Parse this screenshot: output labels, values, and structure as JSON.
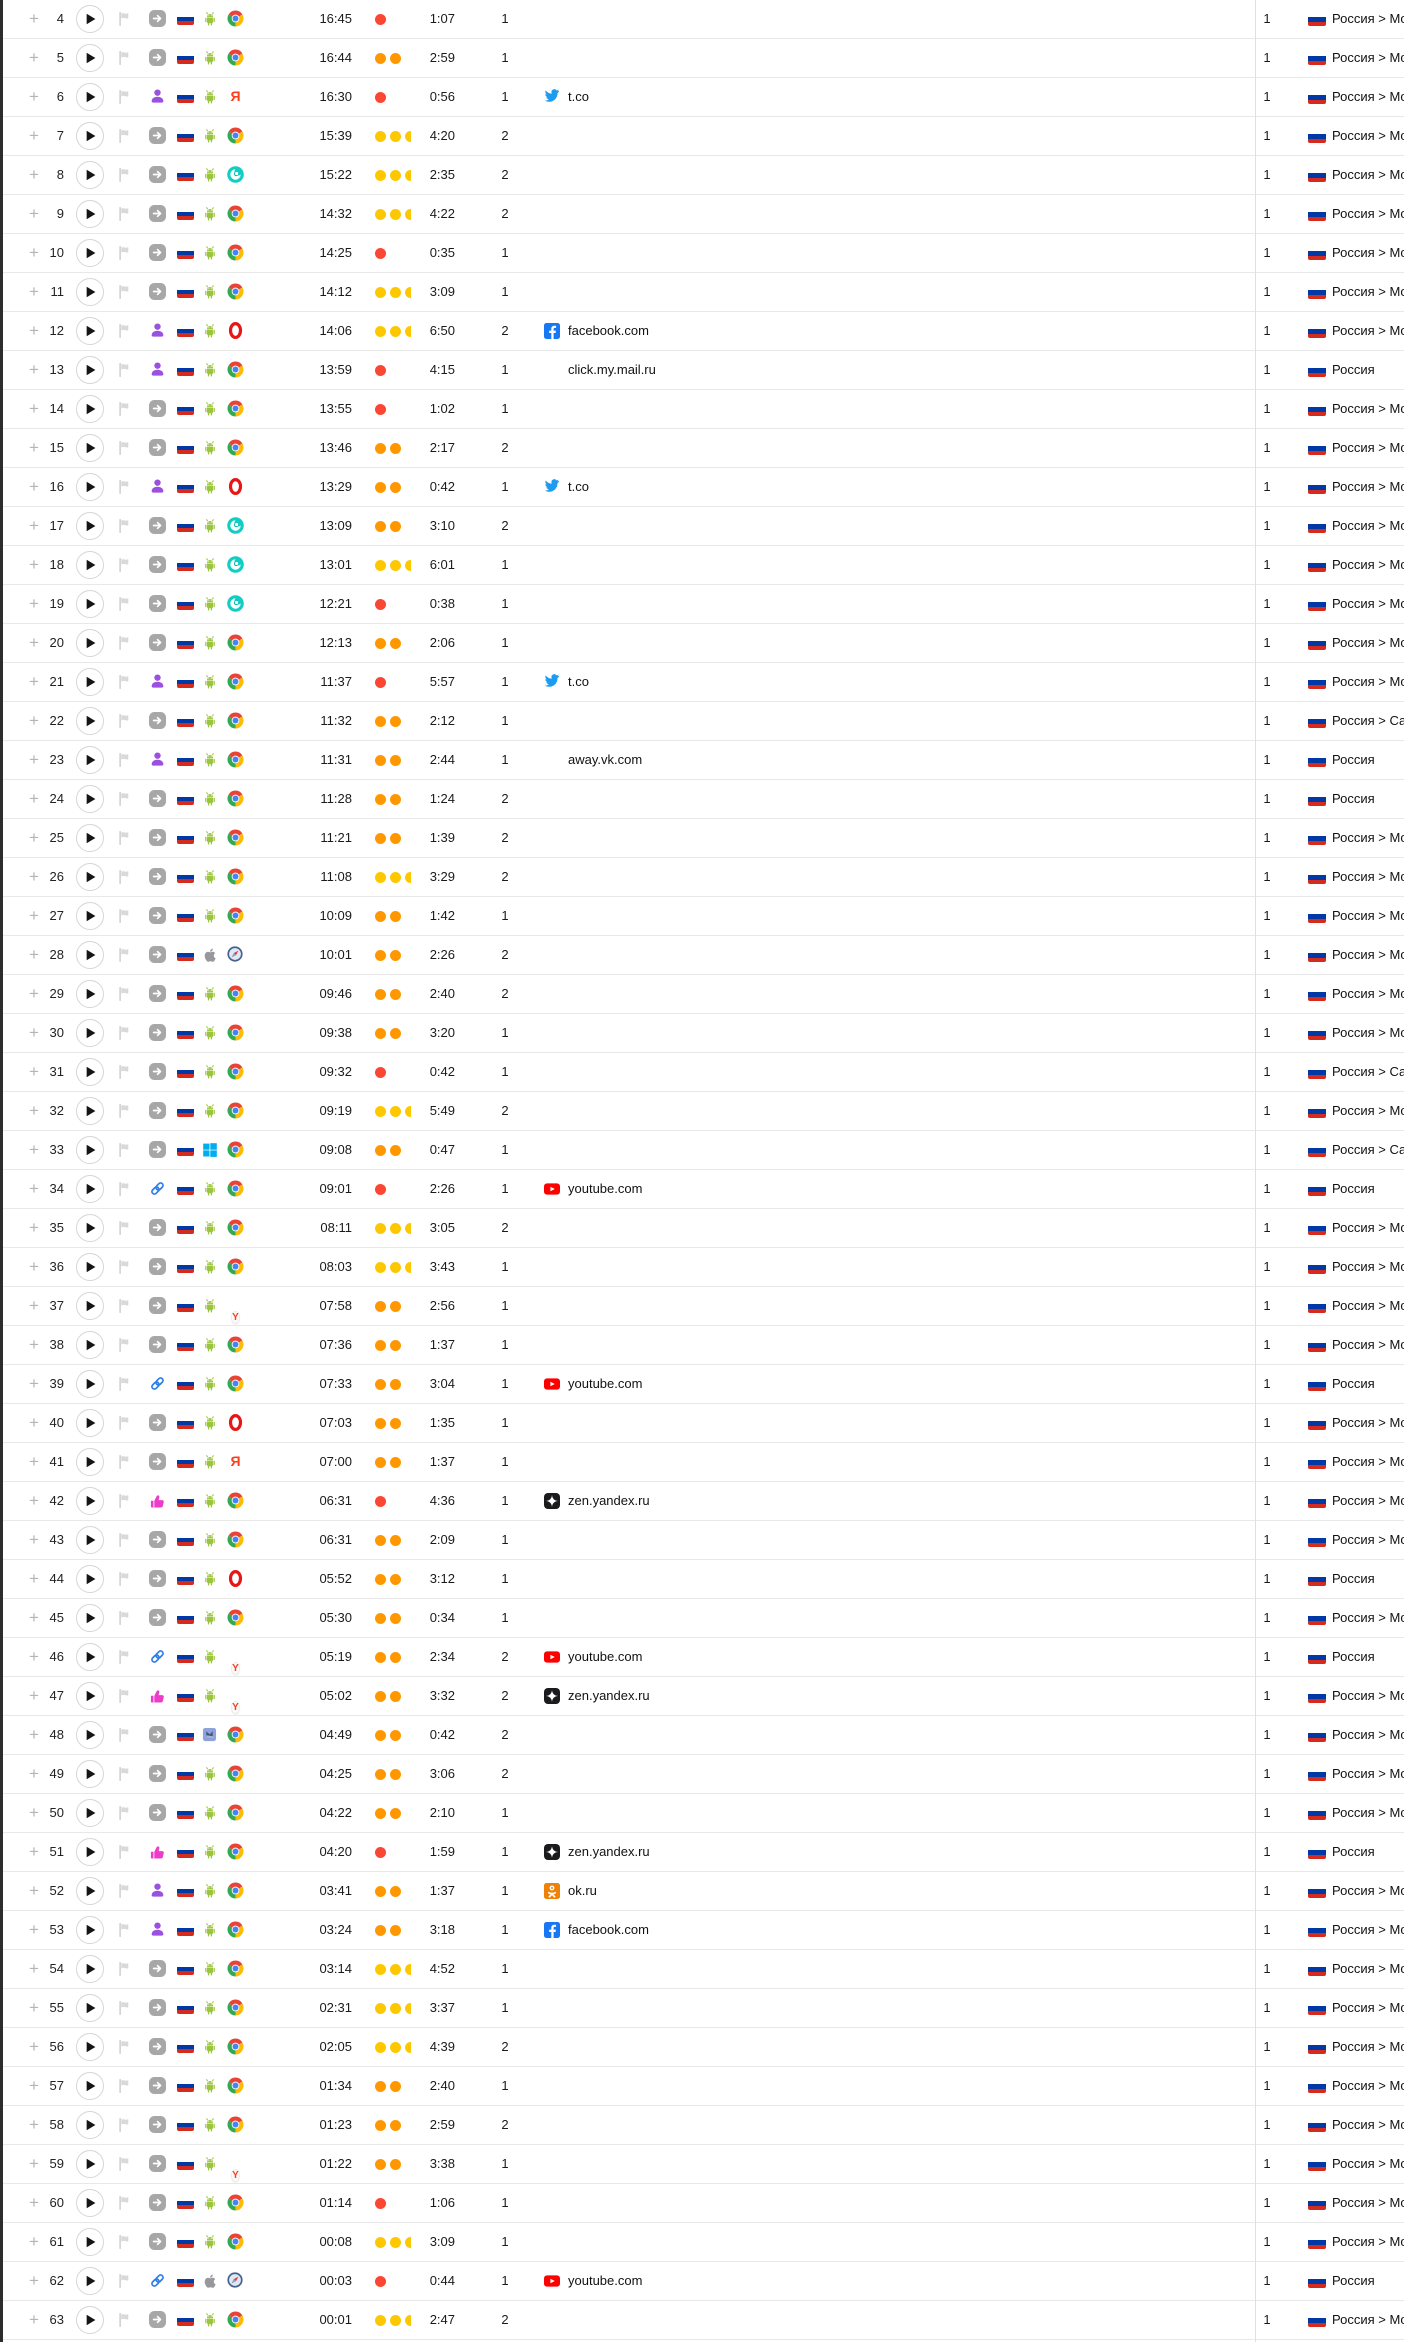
{
  "app": {
    "name": "webvisor-session-table"
  },
  "colors": {
    "activity_red": "#fa4632",
    "activity_orange": "#ff9800",
    "activity_yellow": "#fdc800",
    "row_border": "#e8e8e8",
    "column_divider": "#e0e0e0",
    "left_edge_bar": "#2c2c2c",
    "previous_row_bg": "#f2f1ef",
    "link_blue": "#2e7de9",
    "person_purple": "#9b51e0",
    "thumb_pink": "#ed3cc7",
    "source_gray": "#a7a7a7"
  },
  "glyphs": {
    "plus": "+",
    "yandex_letter": "Я",
    "ybrowser_letter": "Y"
  },
  "table": {
    "rows": [
      {
        "n": "4",
        "time": "16:45",
        "activity": 1,
        "duration": "1:07",
        "views": "1",
        "source": "redirect",
        "os": "android",
        "browser": "chrome",
        "site": "",
        "site_icon": "",
        "count": "1",
        "region": "Россия > Москва"
      },
      {
        "n": "5",
        "time": "16:44",
        "activity": 2,
        "duration": "2:59",
        "views": "1",
        "source": "redirect",
        "os": "android",
        "browser": "chrome",
        "site": "",
        "site_icon": "",
        "count": "1",
        "region": "Россия > Москва"
      },
      {
        "n": "6",
        "time": "16:30",
        "activity": 1,
        "duration": "0:56",
        "views": "1",
        "source": "social",
        "os": "android",
        "browser": "yandex",
        "site": "t.co",
        "site_icon": "twitter",
        "count": "1",
        "region": "Россия > Москва"
      },
      {
        "n": "7",
        "time": "15:39",
        "activity": 3,
        "duration": "4:20",
        "views": "2",
        "source": "redirect",
        "os": "android",
        "browser": "chrome",
        "site": "",
        "site_icon": "",
        "count": "1",
        "region": "Россия > Москва"
      },
      {
        "n": "8",
        "time": "15:22",
        "activity": 3,
        "duration": "2:35",
        "views": "2",
        "source": "redirect",
        "os": "android",
        "browser": "teal-swirl",
        "site": "",
        "site_icon": "",
        "count": "1",
        "region": "Россия > Москва"
      },
      {
        "n": "9",
        "time": "14:32",
        "activity": 3,
        "duration": "4:22",
        "views": "2",
        "source": "redirect",
        "os": "android",
        "browser": "chrome",
        "site": "",
        "site_icon": "",
        "count": "1",
        "region": "Россия > Москва"
      },
      {
        "n": "10",
        "time": "14:25",
        "activity": 1,
        "duration": "0:35",
        "views": "1",
        "source": "redirect",
        "os": "android",
        "browser": "chrome",
        "site": "",
        "site_icon": "",
        "count": "1",
        "region": "Россия > Москва"
      },
      {
        "n": "11",
        "time": "14:12",
        "activity": 3,
        "duration": "3:09",
        "views": "1",
        "source": "redirect",
        "os": "android",
        "browser": "chrome",
        "site": "",
        "site_icon": "",
        "count": "1",
        "region": "Россия > Москва"
      },
      {
        "n": "12",
        "time": "14:06",
        "activity": 3,
        "duration": "6:50",
        "views": "2",
        "source": "social",
        "os": "android",
        "browser": "opera",
        "site": "facebook.com",
        "site_icon": "facebook",
        "count": "1",
        "region": "Россия > Москва"
      },
      {
        "n": "13",
        "time": "13:59",
        "activity": 1,
        "duration": "4:15",
        "views": "1",
        "source": "social",
        "os": "android",
        "browser": "chrome",
        "site": "click.my.mail.ru",
        "site_icon": "",
        "count": "1",
        "region": "Россия"
      },
      {
        "n": "14",
        "time": "13:55",
        "activity": 1,
        "duration": "1:02",
        "views": "1",
        "source": "redirect",
        "os": "android",
        "browser": "chrome",
        "site": "",
        "site_icon": "",
        "count": "1",
        "region": "Россия > Москва"
      },
      {
        "n": "15",
        "time": "13:46",
        "activity": 2,
        "duration": "2:17",
        "views": "2",
        "source": "redirect",
        "os": "android",
        "browser": "chrome",
        "site": "",
        "site_icon": "",
        "count": "1",
        "region": "Россия > Москва"
      },
      {
        "n": "16",
        "time": "13:29",
        "activity": 2,
        "duration": "0:42",
        "views": "1",
        "source": "social",
        "os": "android",
        "browser": "opera",
        "site": "t.co",
        "site_icon": "twitter",
        "count": "1",
        "region": "Россия > Москва"
      },
      {
        "n": "17",
        "time": "13:09",
        "activity": 2,
        "duration": "3:10",
        "views": "2",
        "source": "redirect",
        "os": "android",
        "browser": "teal-swirl",
        "site": "",
        "site_icon": "",
        "count": "1",
        "region": "Россия > Москва"
      },
      {
        "n": "18",
        "time": "13:01",
        "activity": 3,
        "duration": "6:01",
        "views": "1",
        "source": "redirect",
        "os": "android",
        "browser": "teal-swirl",
        "site": "",
        "site_icon": "",
        "count": "1",
        "region": "Россия > Москва"
      },
      {
        "n": "19",
        "time": "12:21",
        "activity": 1,
        "duration": "0:38",
        "views": "1",
        "source": "redirect",
        "os": "android",
        "browser": "teal-swirl",
        "site": "",
        "site_icon": "",
        "count": "1",
        "region": "Россия > Москва"
      },
      {
        "n": "20",
        "time": "12:13",
        "activity": 2,
        "duration": "2:06",
        "views": "1",
        "source": "redirect",
        "os": "android",
        "browser": "chrome",
        "site": "",
        "site_icon": "",
        "count": "1",
        "region": "Россия > Москва"
      },
      {
        "n": "21",
        "time": "11:37",
        "activity": 1,
        "duration": "5:57",
        "views": "1",
        "source": "social",
        "os": "android",
        "browser": "chrome",
        "site": "t.co",
        "site_icon": "twitter",
        "count": "1",
        "region": "Россия > Москва"
      },
      {
        "n": "22",
        "time": "11:32",
        "activity": 2,
        "duration": "2:12",
        "views": "1",
        "source": "redirect",
        "os": "android",
        "browser": "chrome",
        "site": "",
        "site_icon": "",
        "count": "1",
        "region": "Россия > Санкт-Петербург"
      },
      {
        "n": "23",
        "time": "11:31",
        "activity": 2,
        "duration": "2:44",
        "views": "1",
        "source": "social",
        "os": "android",
        "browser": "chrome",
        "site": "away.vk.com",
        "site_icon": "",
        "count": "1",
        "region": "Россия"
      },
      {
        "n": "24",
        "time": "11:28",
        "activity": 2,
        "duration": "1:24",
        "views": "2",
        "source": "redirect",
        "os": "android",
        "browser": "chrome",
        "site": "",
        "site_icon": "",
        "count": "1",
        "region": "Россия"
      },
      {
        "n": "25",
        "time": "11:21",
        "activity": 2,
        "duration": "1:39",
        "views": "2",
        "source": "redirect",
        "os": "android",
        "browser": "chrome",
        "site": "",
        "site_icon": "",
        "count": "1",
        "region": "Россия > Москва"
      },
      {
        "n": "26",
        "time": "11:08",
        "activity": 3,
        "duration": "3:29",
        "views": "2",
        "source": "redirect",
        "os": "android",
        "browser": "chrome",
        "site": "",
        "site_icon": "",
        "count": "1",
        "region": "Россия > Москва"
      },
      {
        "n": "27",
        "time": "10:09",
        "activity": 2,
        "duration": "1:42",
        "views": "1",
        "source": "redirect",
        "os": "android",
        "browser": "chrome",
        "site": "",
        "site_icon": "",
        "count": "1",
        "region": "Россия > Москва"
      },
      {
        "n": "28",
        "time": "10:01",
        "activity": 2,
        "duration": "2:26",
        "views": "2",
        "source": "redirect",
        "os": "apple",
        "browser": "safari",
        "site": "",
        "site_icon": "",
        "count": "1",
        "region": "Россия > Москва"
      },
      {
        "n": "29",
        "time": "09:46",
        "activity": 2,
        "duration": "2:40",
        "views": "2",
        "source": "redirect",
        "os": "android",
        "browser": "chrome",
        "site": "",
        "site_icon": "",
        "count": "1",
        "region": "Россия > Москва"
      },
      {
        "n": "30",
        "time": "09:38",
        "activity": 2,
        "duration": "3:20",
        "views": "1",
        "source": "redirect",
        "os": "android",
        "browser": "chrome",
        "site": "",
        "site_icon": "",
        "count": "1",
        "region": "Россия > Москва"
      },
      {
        "n": "31",
        "time": "09:32",
        "activity": 1,
        "duration": "0:42",
        "views": "1",
        "source": "redirect",
        "os": "android",
        "browser": "chrome",
        "site": "",
        "site_icon": "",
        "count": "1",
        "region": "Россия > Санкт-Петербург"
      },
      {
        "n": "32",
        "time": "09:19",
        "activity": 3,
        "duration": "5:49",
        "views": "2",
        "source": "redirect",
        "os": "android",
        "browser": "chrome",
        "site": "",
        "site_icon": "",
        "count": "1",
        "region": "Россия > Москва"
      },
      {
        "n": "33",
        "time": "09:08",
        "activity": 2,
        "duration": "0:47",
        "views": "1",
        "source": "redirect",
        "os": "windows",
        "browser": "chrome",
        "site": "",
        "site_icon": "",
        "count": "1",
        "region": "Россия > Санкт-Петербург"
      },
      {
        "n": "34",
        "time": "09:01",
        "activity": 1,
        "duration": "2:26",
        "views": "1",
        "source": "link",
        "os": "android",
        "browser": "chrome",
        "site": "youtube.com",
        "site_icon": "youtube",
        "count": "1",
        "region": "Россия"
      },
      {
        "n": "35",
        "time": "08:11",
        "activity": 3,
        "duration": "3:05",
        "views": "2",
        "source": "redirect",
        "os": "android",
        "browser": "chrome",
        "site": "",
        "site_icon": "",
        "count": "1",
        "region": "Россия > Москва"
      },
      {
        "n": "36",
        "time": "08:03",
        "activity": 3,
        "duration": "3:43",
        "views": "1",
        "source": "redirect",
        "os": "android",
        "browser": "chrome",
        "site": "",
        "site_icon": "",
        "count": "1",
        "region": "Россия > Москва"
      },
      {
        "n": "37",
        "time": "07:58",
        "activity": 2,
        "duration": "2:56",
        "views": "1",
        "source": "redirect",
        "os": "android",
        "browser": "ybrowser",
        "site": "",
        "site_icon": "",
        "count": "1",
        "region": "Россия > Москва"
      },
      {
        "n": "38",
        "time": "07:36",
        "activity": 2,
        "duration": "1:37",
        "views": "1",
        "source": "redirect",
        "os": "android",
        "browser": "chrome",
        "site": "",
        "site_icon": "",
        "count": "1",
        "region": "Россия > Москва"
      },
      {
        "n": "39",
        "time": "07:33",
        "activity": 2,
        "duration": "3:04",
        "views": "1",
        "source": "link",
        "os": "android",
        "browser": "chrome",
        "site": "youtube.com",
        "site_icon": "youtube",
        "count": "1",
        "region": "Россия"
      },
      {
        "n": "40",
        "time": "07:03",
        "activity": 2,
        "duration": "1:35",
        "views": "1",
        "source": "redirect",
        "os": "android",
        "browser": "opera",
        "site": "",
        "site_icon": "",
        "count": "1",
        "region": "Россия > Москва"
      },
      {
        "n": "41",
        "time": "07:00",
        "activity": 2,
        "duration": "1:37",
        "views": "1",
        "source": "redirect",
        "os": "android",
        "browser": "yandex",
        "site": "",
        "site_icon": "",
        "count": "1",
        "region": "Россия > Москва"
      },
      {
        "n": "42",
        "time": "06:31",
        "activity": 1,
        "duration": "4:36",
        "views": "1",
        "source": "recommend",
        "os": "android",
        "browser": "chrome",
        "site": "zen.yandex.ru",
        "site_icon": "zen",
        "count": "1",
        "region": "Россия > Москва"
      },
      {
        "n": "43",
        "time": "06:31",
        "activity": 2,
        "duration": "2:09",
        "views": "1",
        "source": "redirect",
        "os": "android",
        "browser": "chrome",
        "site": "",
        "site_icon": "",
        "count": "1",
        "region": "Россия > Москва"
      },
      {
        "n": "44",
        "time": "05:52",
        "activity": 2,
        "duration": "3:12",
        "views": "1",
        "source": "redirect",
        "os": "android",
        "browser": "opera",
        "site": "",
        "site_icon": "",
        "count": "1",
        "region": "Россия"
      },
      {
        "n": "45",
        "time": "05:30",
        "activity": 2,
        "duration": "0:34",
        "views": "1",
        "source": "redirect",
        "os": "android",
        "browser": "chrome",
        "site": "",
        "site_icon": "",
        "count": "1",
        "region": "Россия > Москва"
      },
      {
        "n": "46",
        "time": "05:19",
        "activity": 2,
        "duration": "2:34",
        "views": "2",
        "source": "link",
        "os": "android",
        "browser": "ybrowser",
        "site": "youtube.com",
        "site_icon": "youtube",
        "count": "1",
        "region": "Россия"
      },
      {
        "n": "47",
        "time": "05:02",
        "activity": 2,
        "duration": "3:32",
        "views": "2",
        "source": "recommend",
        "os": "android",
        "browser": "ybrowser",
        "site": "zen.yandex.ru",
        "site_icon": "zen",
        "count": "1",
        "region": "Россия > Москва"
      },
      {
        "n": "48",
        "time": "04:49",
        "activity": 2,
        "duration": "0:42",
        "views": "2",
        "source": "redirect",
        "os": "unknown",
        "browser": "chrome",
        "site": "",
        "site_icon": "",
        "count": "1",
        "region": "Россия > Москва"
      },
      {
        "n": "49",
        "time": "04:25",
        "activity": 2,
        "duration": "3:06",
        "views": "2",
        "source": "redirect",
        "os": "android",
        "browser": "chrome",
        "site": "",
        "site_icon": "",
        "count": "1",
        "region": "Россия > Москва"
      },
      {
        "n": "50",
        "time": "04:22",
        "activity": 2,
        "duration": "2:10",
        "views": "1",
        "source": "redirect",
        "os": "android",
        "browser": "chrome",
        "site": "",
        "site_icon": "",
        "count": "1",
        "region": "Россия > Москва"
      },
      {
        "n": "51",
        "time": "04:20",
        "activity": 1,
        "duration": "1:59",
        "views": "1",
        "source": "recommend",
        "os": "android",
        "browser": "chrome",
        "site": "zen.yandex.ru",
        "site_icon": "zen",
        "count": "1",
        "region": "Россия"
      },
      {
        "n": "52",
        "time": "03:41",
        "activity": 2,
        "duration": "1:37",
        "views": "1",
        "source": "social",
        "os": "android",
        "browser": "chrome",
        "site": "ok.ru",
        "site_icon": "ok",
        "count": "1",
        "region": "Россия > Москва"
      },
      {
        "n": "53",
        "time": "03:24",
        "activity": 2,
        "duration": "3:18",
        "views": "1",
        "source": "social",
        "os": "android",
        "browser": "chrome",
        "site": "facebook.com",
        "site_icon": "facebook",
        "count": "1",
        "region": "Россия > Москва"
      },
      {
        "n": "54",
        "time": "03:14",
        "activity": 3,
        "duration": "4:52",
        "views": "1",
        "source": "redirect",
        "os": "android",
        "browser": "chrome",
        "site": "",
        "site_icon": "",
        "count": "1",
        "region": "Россия > Москва"
      },
      {
        "n": "55",
        "time": "02:31",
        "activity": 3,
        "duration": "3:37",
        "views": "1",
        "source": "redirect",
        "os": "android",
        "browser": "chrome",
        "site": "",
        "site_icon": "",
        "count": "1",
        "region": "Россия > Москва"
      },
      {
        "n": "56",
        "time": "02:05",
        "activity": 3,
        "duration": "4:39",
        "views": "2",
        "source": "redirect",
        "os": "android",
        "browser": "chrome",
        "site": "",
        "site_icon": "",
        "count": "1",
        "region": "Россия > Москва"
      },
      {
        "n": "57",
        "time": "01:34",
        "activity": 2,
        "duration": "2:40",
        "views": "1",
        "source": "redirect",
        "os": "android",
        "browser": "chrome",
        "site": "",
        "site_icon": "",
        "count": "1",
        "region": "Россия > Москва"
      },
      {
        "n": "58",
        "time": "01:23",
        "activity": 2,
        "duration": "2:59",
        "views": "2",
        "source": "redirect",
        "os": "android",
        "browser": "chrome",
        "site": "",
        "site_icon": "",
        "count": "1",
        "region": "Россия > Москва"
      },
      {
        "n": "59",
        "time": "01:22",
        "activity": 2,
        "duration": "3:38",
        "views": "1",
        "source": "redirect",
        "os": "android",
        "browser": "ybrowser",
        "site": "",
        "site_icon": "",
        "count": "1",
        "region": "Россия > Москва"
      },
      {
        "n": "60",
        "time": "01:14",
        "activity": 1,
        "duration": "1:06",
        "views": "1",
        "source": "redirect",
        "os": "android",
        "browser": "chrome",
        "site": "",
        "site_icon": "",
        "count": "1",
        "region": "Россия > Москва"
      },
      {
        "n": "61",
        "time": "00:08",
        "activity": 3,
        "duration": "3:09",
        "views": "1",
        "source": "redirect",
        "os": "android",
        "browser": "chrome",
        "site": "",
        "site_icon": "",
        "count": "1",
        "region": "Россия > Москва"
      },
      {
        "n": "62",
        "time": "00:03",
        "activity": 1,
        "duration": "0:44",
        "views": "1",
        "source": "link",
        "os": "apple",
        "browser": "safari",
        "site": "youtube.com",
        "site_icon": "youtube",
        "count": "1",
        "region": "Россия"
      },
      {
        "n": "63",
        "time": "00:01",
        "activity": 3,
        "duration": "2:47",
        "views": "2",
        "source": "redirect",
        "os": "android",
        "browser": "chrome",
        "site": "",
        "site_icon": "",
        "count": "1",
        "region": "Россия > Москва"
      }
    ]
  }
}
